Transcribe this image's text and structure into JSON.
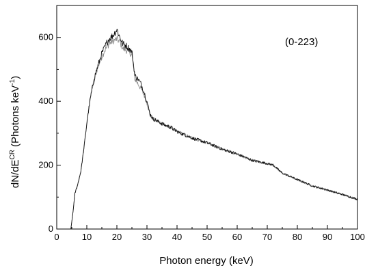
{
  "chart_data": {
    "type": "line",
    "title": "",
    "annotation": "(0-223)",
    "xlabel": "Photon energy  (keV)",
    "ylabel": "dN/dE",
    "ylabel_superscript": "CR",
    "ylabel_unit_text": " (Photons  keV",
    "ylabel_unit_exp": "-1",
    "ylabel_unit_close": ")",
    "xlim": [
      0,
      100
    ],
    "ylim": [
      0,
      700
    ],
    "xticks": [
      0,
      10,
      20,
      30,
      40,
      50,
      60,
      70,
      80,
      90,
      100
    ],
    "yticks": [
      0,
      200,
      400,
      600
    ],
    "grid": false,
    "series": [
      {
        "color": "#111111",
        "x": [
          4.7,
          5.5,
          6.0,
          7.0,
          8.0,
          9.0,
          10.0,
          11.0,
          12.0,
          13.0,
          14.0,
          15.0,
          16.0,
          17.0,
          18.0,
          19.0,
          20.0,
          21.0,
          22.0,
          23.0,
          24.0,
          25.0,
          26.0,
          27.0,
          28.0,
          29.0,
          30.0,
          31.0,
          32.0,
          34.0,
          36.0,
          38.0,
          40.0,
          45.0,
          50.0,
          55.0,
          60.0,
          65.0,
          70.0,
          72.0,
          75.0,
          80.0,
          85.0,
          90.0,
          95.0,
          100.0
        ],
        "y": [
          0,
          60,
          110,
          140,
          180,
          250,
          330,
          400,
          450,
          490,
          520,
          550,
          570,
          590,
          600,
          610,
          625,
          600,
          580,
          575,
          565,
          555,
          480,
          470,
          455,
          430,
          400,
          360,
          345,
          335,
          325,
          318,
          305,
          285,
          270,
          250,
          235,
          215,
          205,
          200,
          175,
          155,
          135,
          122,
          108,
          93
        ]
      },
      {
        "color": "#8a8a8a",
        "x": [
          4.7,
          5.5,
          6.0,
          7.0,
          8.0,
          9.0,
          10.0,
          11.0,
          12.0,
          13.0,
          14.0,
          15.0,
          16.0,
          17.0,
          18.0,
          19.0,
          20.0,
          21.0,
          22.0,
          23.0,
          24.0,
          25.0,
          26.0,
          27.0,
          28.0,
          29.0,
          30.0,
          31.0,
          32.0,
          34.0,
          36.0,
          38.0,
          40.0,
          45.0,
          50.0,
          55.0,
          60.0,
          65.0,
          70.0,
          72.0,
          75.0,
          80.0,
          85.0,
          90.0,
          95.0,
          100.0
        ],
        "y": [
          0,
          60,
          110,
          140,
          180,
          250,
          330,
          400,
          450,
          488,
          515,
          540,
          560,
          575,
          585,
          590,
          595,
          585,
          565,
          560,
          555,
          545,
          470,
          455,
          440,
          420,
          395,
          360,
          345,
          335,
          325,
          318,
          305,
          285,
          270,
          250,
          235,
          215,
          205,
          200,
          175,
          155,
          135,
          122,
          108,
          93
        ]
      }
    ]
  }
}
